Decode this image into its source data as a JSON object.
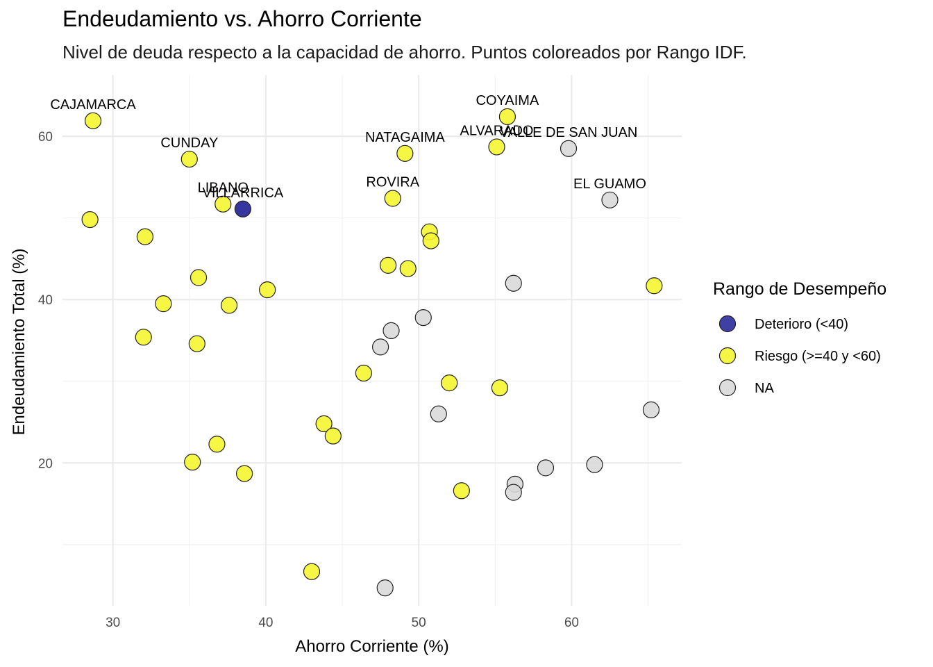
{
  "chart_data": {
    "type": "scatter",
    "title": "Endeudamiento vs. Ahorro Corriente",
    "subtitle": "Nivel de deuda respecto a la capacidad de ahorro. Puntos coloreados por Rango IDF.",
    "xlabel": "Ahorro Corriente (%)",
    "ylabel": "Endeudamiento Total (%)",
    "xlim": [
      26.7,
      67.2
    ],
    "ylim": [
      2.5,
      67.5
    ],
    "x_ticks": [
      30,
      40,
      50,
      60
    ],
    "y_ticks": [
      20,
      40,
      60
    ],
    "x_tick_labels": [
      "30",
      "40",
      "50",
      "60"
    ],
    "y_tick_labels": [
      "20",
      "40",
      "60"
    ],
    "grid": true,
    "legend": {
      "title": "Rango de Desempeño",
      "position": "right",
      "entries": [
        {
          "key": "deterioro",
          "label": "Deterioro (<40)",
          "color": "#2b2b9a"
        },
        {
          "key": "riesgo",
          "label": "Riesgo (>=40 y <60)",
          "color": "#f5f531"
        },
        {
          "key": "na",
          "label": "NA",
          "color": "#d9d9d9"
        }
      ]
    },
    "points": [
      {
        "x": 28.7,
        "y": 61.9,
        "group": "riesgo",
        "label": "CAJAMARCA"
      },
      {
        "x": 35.0,
        "y": 57.2,
        "group": "riesgo",
        "label": "CUNDAY"
      },
      {
        "x": 37.2,
        "y": 51.7,
        "group": "riesgo",
        "label": "LIBANO"
      },
      {
        "x": 38.5,
        "y": 51.1,
        "group": "deterioro",
        "label": "VILLARRICA"
      },
      {
        "x": 49.1,
        "y": 57.9,
        "group": "riesgo",
        "label": "NATAGAIMA"
      },
      {
        "x": 55.8,
        "y": 62.4,
        "group": "riesgo",
        "label": "COYAIMA"
      },
      {
        "x": 55.1,
        "y": 58.7,
        "group": "riesgo",
        "label": "ALVARADO"
      },
      {
        "x": 59.8,
        "y": 58.5,
        "group": "na",
        "label": "VALLE DE SAN JUAN"
      },
      {
        "x": 48.3,
        "y": 52.4,
        "group": "riesgo",
        "label": "ROVIRA"
      },
      {
        "x": 62.5,
        "y": 52.2,
        "group": "na",
        "label": "EL GUAMO"
      },
      {
        "x": 28.5,
        "y": 49.8,
        "group": "riesgo",
        "label": ""
      },
      {
        "x": 32.1,
        "y": 47.7,
        "group": "riesgo",
        "label": ""
      },
      {
        "x": 50.7,
        "y": 48.3,
        "group": "riesgo",
        "label": ""
      },
      {
        "x": 50.8,
        "y": 47.2,
        "group": "riesgo",
        "label": ""
      },
      {
        "x": 48.0,
        "y": 44.2,
        "group": "riesgo",
        "label": ""
      },
      {
        "x": 49.3,
        "y": 43.8,
        "group": "riesgo",
        "label": ""
      },
      {
        "x": 35.6,
        "y": 42.7,
        "group": "riesgo",
        "label": ""
      },
      {
        "x": 56.2,
        "y": 42.0,
        "group": "na",
        "label": ""
      },
      {
        "x": 65.4,
        "y": 41.7,
        "group": "riesgo",
        "label": ""
      },
      {
        "x": 40.1,
        "y": 41.2,
        "group": "riesgo",
        "label": ""
      },
      {
        "x": 33.3,
        "y": 39.5,
        "group": "riesgo",
        "label": ""
      },
      {
        "x": 37.6,
        "y": 39.3,
        "group": "riesgo",
        "label": ""
      },
      {
        "x": 50.3,
        "y": 37.8,
        "group": "na",
        "label": ""
      },
      {
        "x": 48.2,
        "y": 36.2,
        "group": "na",
        "label": ""
      },
      {
        "x": 32.0,
        "y": 35.4,
        "group": "riesgo",
        "label": ""
      },
      {
        "x": 35.5,
        "y": 34.6,
        "group": "riesgo",
        "label": ""
      },
      {
        "x": 47.5,
        "y": 34.2,
        "group": "na",
        "label": ""
      },
      {
        "x": 46.4,
        "y": 31.0,
        "group": "riesgo",
        "label": ""
      },
      {
        "x": 52.0,
        "y": 29.8,
        "group": "riesgo",
        "label": ""
      },
      {
        "x": 55.3,
        "y": 29.2,
        "group": "riesgo",
        "label": ""
      },
      {
        "x": 65.2,
        "y": 26.5,
        "group": "na",
        "label": ""
      },
      {
        "x": 51.3,
        "y": 26.0,
        "group": "na",
        "label": ""
      },
      {
        "x": 43.8,
        "y": 24.8,
        "group": "riesgo",
        "label": ""
      },
      {
        "x": 44.4,
        "y": 23.3,
        "group": "riesgo",
        "label": ""
      },
      {
        "x": 36.8,
        "y": 22.3,
        "group": "riesgo",
        "label": ""
      },
      {
        "x": 35.2,
        "y": 20.1,
        "group": "riesgo",
        "label": ""
      },
      {
        "x": 61.5,
        "y": 19.8,
        "group": "na",
        "label": ""
      },
      {
        "x": 58.3,
        "y": 19.4,
        "group": "na",
        "label": ""
      },
      {
        "x": 38.6,
        "y": 18.7,
        "group": "riesgo",
        "label": ""
      },
      {
        "x": 56.3,
        "y": 17.4,
        "group": "na",
        "label": ""
      },
      {
        "x": 56.2,
        "y": 16.4,
        "group": "na",
        "label": ""
      },
      {
        "x": 52.8,
        "y": 16.6,
        "group": "riesgo",
        "label": ""
      },
      {
        "x": 43.0,
        "y": 6.7,
        "group": "riesgo",
        "label": ""
      },
      {
        "x": 47.8,
        "y": 4.7,
        "group": "na",
        "label": ""
      }
    ]
  }
}
